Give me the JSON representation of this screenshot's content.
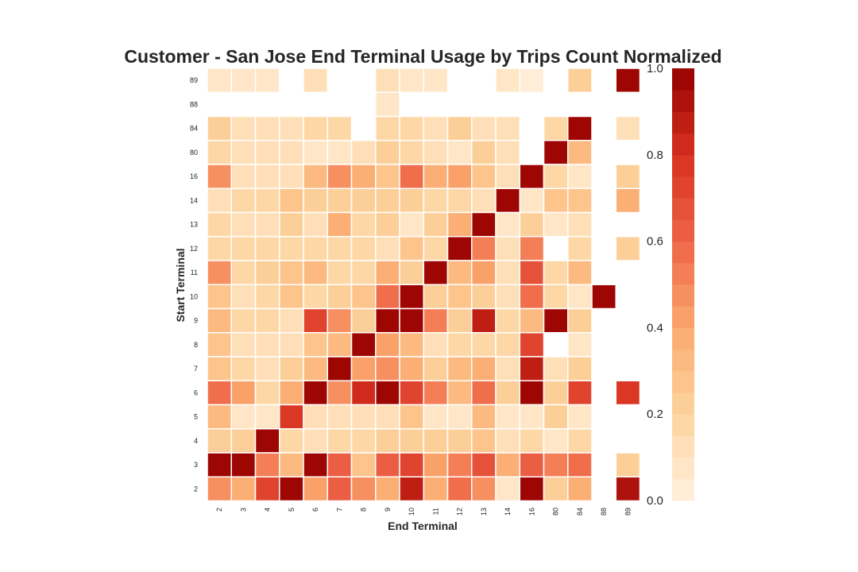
{
  "chart_data": {
    "type": "heatmap",
    "title": "Customer - San Jose End Terminal Usage by Trips Count Normalized",
    "xlabel": "End Terminal",
    "ylabel": "Start Terminal",
    "x_categories": [
      "2",
      "3",
      "4",
      "5",
      "6",
      "7",
      "8",
      "9",
      "10",
      "11",
      "12",
      "13",
      "14",
      "16",
      "80",
      "84",
      "88",
      "89"
    ],
    "y_categories": [
      "89",
      "88",
      "84",
      "80",
      "16",
      "14",
      "13",
      "12",
      "11",
      "10",
      "9",
      "8",
      "7",
      "6",
      "5",
      "4",
      "3",
      "2"
    ],
    "values": [
      [
        0.05,
        0.05,
        0.05,
        null,
        0.1,
        null,
        null,
        0.1,
        0.08,
        0.05,
        null,
        null,
        0.08,
        0.04,
        null,
        0.2,
        null,
        1.0
      ],
      [
        null,
        null,
        null,
        null,
        null,
        null,
        null,
        0.05,
        null,
        null,
        null,
        null,
        null,
        null,
        null,
        null,
        null,
        null
      ],
      [
        0.2,
        0.12,
        0.1,
        0.12,
        0.18,
        0.15,
        null,
        0.15,
        0.15,
        0.12,
        0.2,
        0.12,
        0.1,
        null,
        0.18,
        1.0,
        null,
        0.12
      ],
      [
        0.16,
        0.12,
        0.12,
        0.12,
        0.06,
        0.05,
        0.1,
        0.22,
        0.15,
        0.12,
        0.05,
        0.22,
        0.1,
        null,
        1.0,
        0.3,
        null,
        null
      ],
      [
        0.45,
        0.13,
        0.13,
        0.13,
        0.3,
        0.45,
        0.38,
        0.25,
        0.55,
        0.38,
        0.4,
        0.28,
        0.1,
        1.0,
        0.16,
        0.06,
        null,
        0.2
      ],
      [
        0.12,
        0.18,
        0.15,
        0.25,
        0.2,
        0.2,
        0.2,
        0.2,
        0.2,
        0.15,
        0.16,
        0.1,
        1.0,
        0.05,
        0.25,
        0.25,
        null,
        0.35
      ],
      [
        0.15,
        0.1,
        0.12,
        0.22,
        0.12,
        0.35,
        0.18,
        0.2,
        0.05,
        0.2,
        0.35,
        1.0,
        0.08,
        0.22,
        0.08,
        0.12,
        null,
        null
      ],
      [
        0.18,
        0.16,
        0.16,
        0.16,
        0.16,
        0.16,
        0.15,
        0.12,
        0.25,
        0.18,
        1.0,
        0.5,
        0.12,
        0.5,
        null,
        0.16,
        null,
        0.2
      ],
      [
        0.45,
        0.18,
        0.2,
        0.25,
        0.3,
        0.18,
        0.18,
        0.35,
        0.2,
        1.0,
        0.3,
        0.4,
        0.12,
        0.65,
        0.15,
        0.3,
        null,
        null
      ],
      [
        0.28,
        0.1,
        0.18,
        0.25,
        0.18,
        0.2,
        0.25,
        0.55,
        1.0,
        0.2,
        0.25,
        0.22,
        0.1,
        0.55,
        0.15,
        0.08,
        1.0,
        null
      ],
      [
        0.3,
        0.18,
        0.15,
        0.12,
        0.7,
        0.45,
        0.2,
        0.95,
        1.0,
        0.5,
        0.2,
        0.85,
        0.15,
        0.3,
        1.0,
        0.2,
        null,
        null
      ],
      [
        0.25,
        0.12,
        0.12,
        0.12,
        0.25,
        0.3,
        1.0,
        0.4,
        0.3,
        0.12,
        0.15,
        0.16,
        0.16,
        0.7,
        null,
        0.08,
        null,
        null
      ],
      [
        0.28,
        0.18,
        0.14,
        0.2,
        0.3,
        1.0,
        0.4,
        0.45,
        0.35,
        0.2,
        0.3,
        0.35,
        0.12,
        0.85,
        0.12,
        0.2,
        null,
        null
      ],
      [
        0.55,
        0.4,
        0.18,
        0.38,
        1.0,
        0.45,
        0.8,
        0.98,
        0.7,
        0.5,
        0.3,
        0.55,
        0.2,
        0.95,
        0.2,
        0.7,
        null,
        0.75
      ],
      [
        0.3,
        0.08,
        0.05,
        0.75,
        0.12,
        0.1,
        0.1,
        0.12,
        0.25,
        0.08,
        0.06,
        0.3,
        0.08,
        0.08,
        0.22,
        0.06,
        null,
        null
      ],
      [
        0.2,
        0.2,
        1.0,
        0.15,
        0.12,
        0.16,
        0.16,
        0.2,
        0.2,
        0.2,
        0.22,
        0.25,
        0.1,
        0.15,
        0.08,
        0.16,
        null,
        null
      ],
      [
        1.0,
        1.0,
        0.5,
        0.3,
        1.0,
        0.6,
        0.25,
        0.6,
        0.7,
        0.4,
        0.5,
        0.65,
        0.35,
        0.6,
        0.5,
        0.55,
        null,
        0.2
      ],
      [
        0.45,
        0.35,
        0.7,
        1.0,
        0.4,
        0.6,
        0.45,
        0.35,
        0.85,
        0.38,
        0.55,
        0.45,
        0.05,
        1.0,
        0.2,
        0.38,
        null,
        0.9
      ]
    ],
    "colorbar": {
      "min": 0.0,
      "max": 1.0,
      "ticks": [
        "0.0",
        "0.2",
        "0.4",
        "0.6",
        "0.8",
        "1.0"
      ],
      "colormap": "OrRd",
      "levels": 20
    },
    "grid": false
  }
}
